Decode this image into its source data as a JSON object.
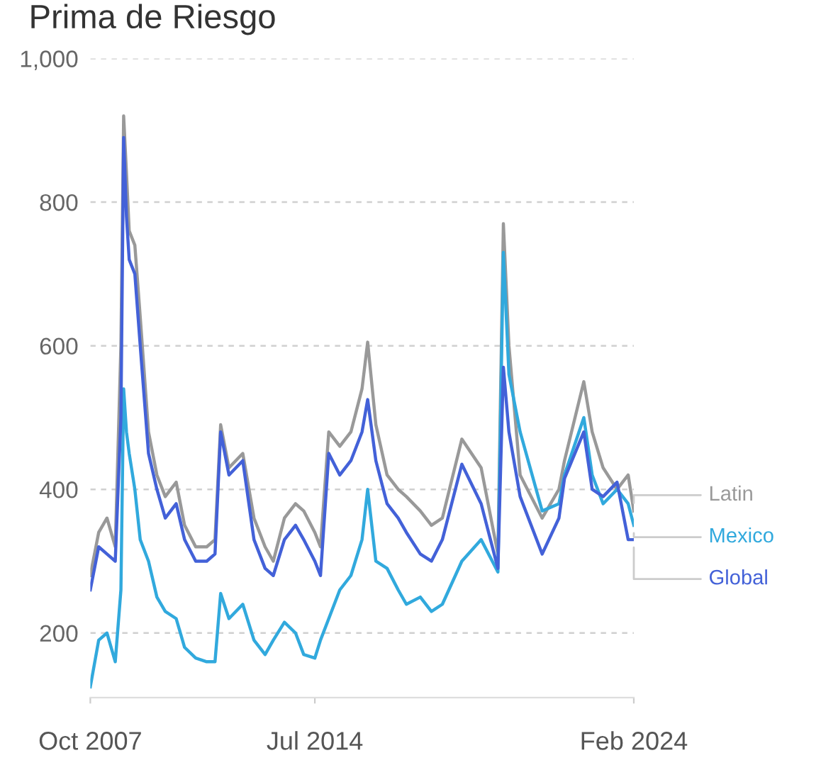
{
  "chart_data": {
    "type": "line",
    "title": "Prima de Riesgo",
    "x": [
      "2007-10",
      "2008-01",
      "2008-04",
      "2008-07",
      "2008-09",
      "2008-10",
      "2008-11",
      "2008-12",
      "2009-02",
      "2009-04",
      "2009-07",
      "2009-10",
      "2010-01",
      "2010-05",
      "2010-08",
      "2010-12",
      "2011-04",
      "2011-07",
      "2011-09",
      "2011-12",
      "2012-05",
      "2012-09",
      "2013-01",
      "2013-04",
      "2013-08",
      "2013-12",
      "2014-03",
      "2014-07",
      "2014-09",
      "2014-12",
      "2015-04",
      "2015-08",
      "2015-12",
      "2016-02",
      "2016-05",
      "2016-09",
      "2017-01",
      "2017-04",
      "2017-09",
      "2018-01",
      "2018-05",
      "2018-12",
      "2019-07",
      "2020-01",
      "2020-03",
      "2020-05",
      "2020-09",
      "2021-05",
      "2021-11",
      "2022-01",
      "2022-08",
      "2022-11",
      "2023-03",
      "2023-08",
      "2023-12",
      "2024-02"
    ],
    "series": [
      {
        "name": "Latin",
        "color": "#999999",
        "values": [
          280,
          340,
          360,
          320,
          600,
          920,
          840,
          760,
          740,
          640,
          480,
          420,
          390,
          410,
          350,
          320,
          320,
          330,
          490,
          430,
          450,
          360,
          320,
          300,
          360,
          380,
          370,
          340,
          320,
          480,
          460,
          480,
          540,
          605,
          490,
          420,
          400,
          390,
          370,
          350,
          360,
          470,
          430,
          310,
          770,
          600,
          420,
          360,
          400,
          440,
          550,
          480,
          430,
          400,
          420,
          370
        ]
      },
      {
        "name": "Mexico",
        "color": "#31a9dd",
        "values": [
          125,
          190,
          200,
          160,
          260,
          540,
          480,
          450,
          400,
          330,
          300,
          250,
          230,
          220,
          180,
          165,
          160,
          160,
          255,
          220,
          240,
          190,
          170,
          190,
          215,
          200,
          170,
          165,
          190,
          220,
          260,
          280,
          330,
          400,
          300,
          290,
          260,
          240,
          250,
          230,
          240,
          300,
          330,
          285,
          730,
          560,
          480,
          370,
          380,
          420,
          500,
          420,
          380,
          400,
          380,
          350
        ]
      },
      {
        "name": "Global",
        "color": "#4361d8",
        "values": [
          260,
          320,
          310,
          300,
          500,
          890,
          780,
          720,
          700,
          600,
          450,
          400,
          360,
          380,
          330,
          300,
          300,
          310,
          480,
          420,
          440,
          330,
          290,
          280,
          330,
          350,
          330,
          300,
          280,
          450,
          420,
          440,
          480,
          525,
          440,
          380,
          360,
          340,
          310,
          300,
          330,
          435,
          380,
          290,
          570,
          480,
          390,
          310,
          360,
          415,
          480,
          400,
          390,
          410,
          330,
          330
        ]
      }
    ],
    "xlim": [
      "2007-10",
      "2024-02"
    ],
    "xticks": [
      {
        "value": "2007-10",
        "label": "Oct 2007"
      },
      {
        "value": "2014-07",
        "label": "Jul 2014"
      },
      {
        "value": "2024-02",
        "label": "Feb 2024"
      }
    ],
    "ylim": [
      110,
      1000
    ],
    "yticks": [
      {
        "value": 200,
        "label": "200"
      },
      {
        "value": 400,
        "label": "400"
      },
      {
        "value": 600,
        "label": "600"
      },
      {
        "value": 800,
        "label": "800"
      },
      {
        "value": 1000,
        "label": "1,000"
      }
    ],
    "grid": "y",
    "line_style": "solid",
    "marker": "none"
  }
}
